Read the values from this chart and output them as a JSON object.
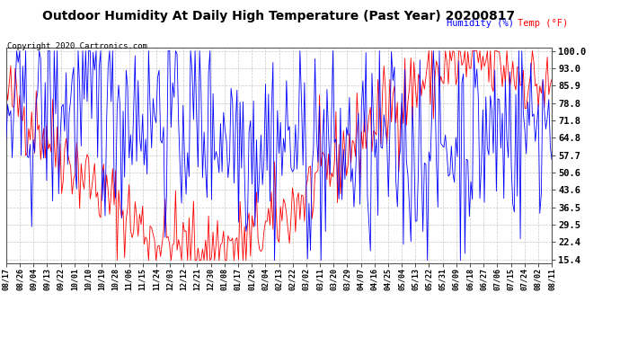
{
  "title": "Outdoor Humidity At Daily High Temperature (Past Year) 20200817",
  "copyright": "Copyright 2020 Cartronics.com",
  "legend_humidity": "Humidity (%)",
  "legend_temp": "Temp (°F)",
  "ylabel_right_ticks": [
    15.4,
    22.4,
    29.5,
    36.5,
    43.6,
    50.6,
    57.7,
    64.8,
    71.8,
    78.8,
    85.9,
    93.0,
    100.0
  ],
  "ylim": [
    14.0,
    101.5
  ],
  "x_tick_labels": [
    "08/17",
    "08/26",
    "09/04",
    "09/13",
    "09/22",
    "10/01",
    "10/10",
    "10/19",
    "10/28",
    "11/06",
    "11/15",
    "11/24",
    "12/03",
    "12/12",
    "12/21",
    "12/30",
    "01/08",
    "01/17",
    "01/26",
    "02/04",
    "02/13",
    "02/22",
    "03/02",
    "03/11",
    "03/20",
    "03/29",
    "04/07",
    "04/16",
    "04/25",
    "05/04",
    "05/13",
    "05/22",
    "05/31",
    "06/09",
    "06/18",
    "06/27",
    "07/06",
    "07/15",
    "07/24",
    "08/02",
    "08/11"
  ],
  "color_humidity": "#0000ff",
  "color_temp": "#ff0000",
  "background_color": "#ffffff",
  "grid_color": "#bbbbbb",
  "title_fontsize": 10,
  "copyright_fontsize": 6.5,
  "legend_fontsize": 7.5,
  "tick_label_fontsize": 6.0
}
